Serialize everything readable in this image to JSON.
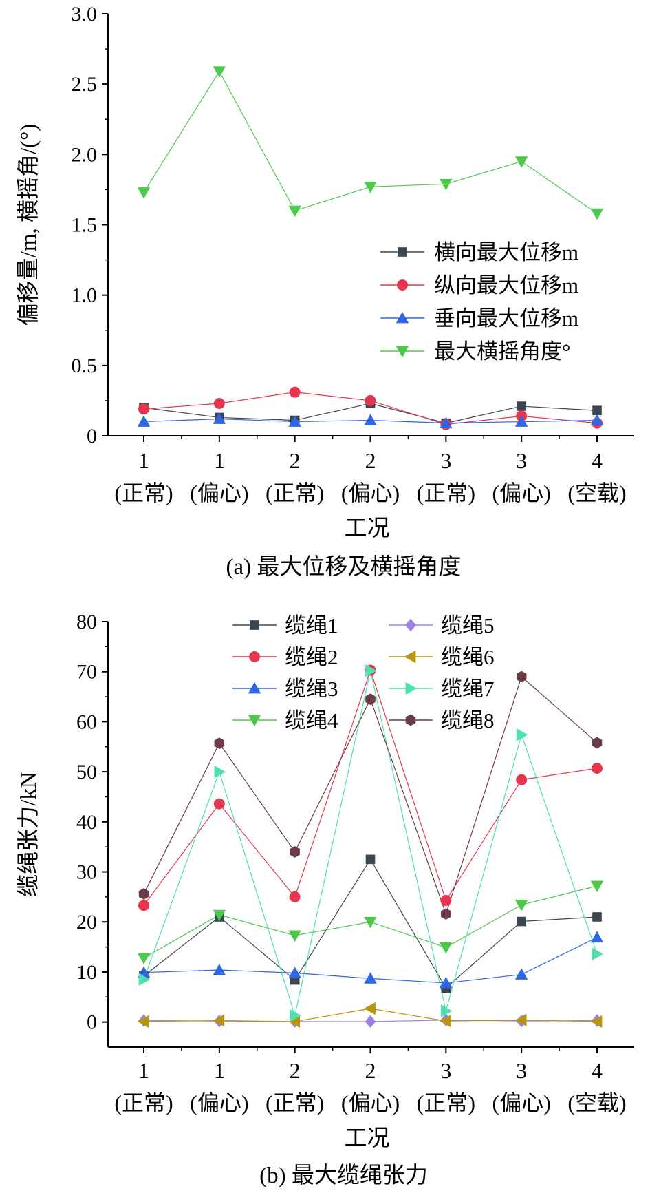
{
  "charts": [
    {
      "id": "a",
      "chart_data": {
        "type": "line",
        "title": "",
        "caption": "(a) 最大位移及横摇角度",
        "xlabel": "工况",
        "ylabel": "偏移量/m, 横摇角/(°)",
        "categories": [
          {
            "top": "1",
            "bottom": "(正常)"
          },
          {
            "top": "1",
            "bottom": "(偏心)"
          },
          {
            "top": "2",
            "bottom": "(正常)"
          },
          {
            "top": "2",
            "bottom": "(偏心)"
          },
          {
            "top": "3",
            "bottom": "(正常)"
          },
          {
            "top": "3",
            "bottom": "(偏心)"
          },
          {
            "top": "4",
            "bottom": "(空载)"
          }
        ],
        "ylim": [
          0,
          3.0
        ],
        "yticks": [
          0,
          0.5,
          1.0,
          1.5,
          2.0,
          2.5,
          3.0
        ],
        "ytick_labels": [
          "0",
          "0.5",
          "1.0",
          "1.5",
          "2.0",
          "2.5",
          "3.0"
        ],
        "legend_position": "center-right",
        "series": [
          {
            "name": "横向最大位移m",
            "marker": "square",
            "color": "#3a4650",
            "values": [
              0.2,
              0.13,
              0.11,
              0.23,
              0.09,
              0.21,
              0.18
            ]
          },
          {
            "name": "纵向最大位移m",
            "marker": "circle",
            "color": "#e4374f",
            "values": [
              0.19,
              0.23,
              0.31,
              0.25,
              0.08,
              0.14,
              0.09
            ]
          },
          {
            "name": "垂向最大位移m",
            "marker": "triangle-up",
            "color": "#2f66e6",
            "values": [
              0.1,
              0.12,
              0.1,
              0.11,
              0.09,
              0.1,
              0.11
            ]
          },
          {
            "name": "最大横摇角度°",
            "marker": "triangle-down",
            "color": "#4ec84a",
            "values": [
              1.73,
              2.59,
              1.6,
              1.77,
              1.79,
              1.95,
              1.58
            ]
          }
        ]
      }
    },
    {
      "id": "b",
      "chart_data": {
        "type": "line",
        "title": "",
        "caption": "(b) 最大缆绳张力",
        "xlabel": "工况",
        "ylabel": "缆绳张力/kN",
        "categories": [
          {
            "top": "1",
            "bottom": "(正常)"
          },
          {
            "top": "1",
            "bottom": "(偏心)"
          },
          {
            "top": "2",
            "bottom": "(正常)"
          },
          {
            "top": "2",
            "bottom": "(偏心)"
          },
          {
            "top": "3",
            "bottom": "(正常)"
          },
          {
            "top": "3",
            "bottom": "(偏心)"
          },
          {
            "top": "4",
            "bottom": "(空载)"
          }
        ],
        "ylim": [
          -5,
          80
        ],
        "yticks": [
          0,
          10,
          20,
          30,
          40,
          50,
          60,
          70,
          80
        ],
        "ytick_labels": [
          "0",
          "10",
          "20",
          "30",
          "40",
          "50",
          "60",
          "70",
          "80"
        ],
        "legend_position": "top",
        "series": [
          {
            "name": "缆绳1",
            "marker": "square",
            "color": "#3a4650",
            "values": [
              9.2,
              21.0,
              8.4,
              32.5,
              6.8,
              20.1,
              21.0
            ]
          },
          {
            "name": "缆绳2",
            "marker": "circle",
            "color": "#e4374f",
            "values": [
              23.3,
              43.6,
              25.0,
              70.3,
              24.3,
              48.4,
              50.7
            ]
          },
          {
            "name": "缆绳3",
            "marker": "triangle-up",
            "color": "#2f66e6",
            "values": [
              9.9,
              10.4,
              9.8,
              8.7,
              7.8,
              9.5,
              16.9
            ]
          },
          {
            "name": "缆绳4",
            "marker": "triangle-down",
            "color": "#4ec84a",
            "values": [
              12.8,
              21.4,
              17.3,
              20.0,
              14.9,
              23.4,
              27.2
            ]
          },
          {
            "name": "缆绳5",
            "marker": "diamond",
            "color": "#9e80ea",
            "values": [
              0.3,
              0.2,
              0.1,
              0.1,
              0.4,
              0.2,
              0.3
            ]
          },
          {
            "name": "缆绳6",
            "marker": "triangle-left",
            "color": "#b8950f",
            "values": [
              0.1,
              0.3,
              0.1,
              2.7,
              0.2,
              0.4,
              0.1
            ]
          },
          {
            "name": "缆绳7",
            "marker": "triangle-right",
            "color": "#4fe0b0",
            "values": [
              8.5,
              50.0,
              1.3,
              70.2,
              2.2,
              57.4,
              13.6
            ]
          },
          {
            "name": "缆绳8",
            "marker": "hexagon",
            "color": "#6b3c48",
            "values": [
              25.6,
              55.7,
              34.0,
              64.5,
              21.6,
              69.0,
              55.8
            ]
          }
        ]
      }
    }
  ]
}
